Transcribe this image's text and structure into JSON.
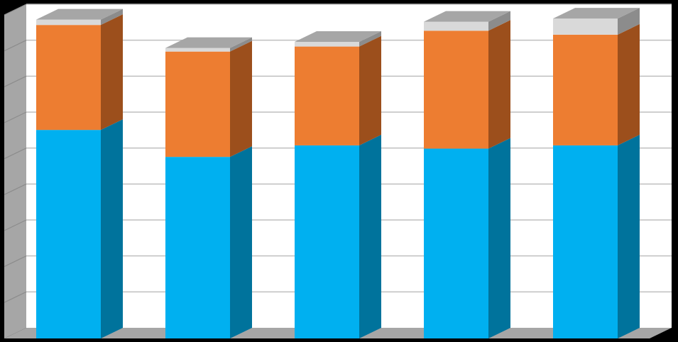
{
  "chart_data": {
    "type": "bar",
    "stacked": true,
    "three_d": true,
    "categories": [
      "",
      "",
      "",
      "",
      ""
    ],
    "series": [
      {
        "values": [
          5.8,
          5.05,
          5.37,
          5.28,
          5.37
        ]
      },
      {
        "values": [
          2.92,
          2.93,
          2.75,
          3.28,
          3.08
        ]
      },
      {
        "values": [
          0.15,
          0.1,
          0.13,
          0.25,
          0.45
        ]
      }
    ],
    "ylim": [
      0,
      9
    ],
    "grid": true,
    "legend": "none",
    "title": "",
    "xlabel": "",
    "ylabel": ""
  },
  "colors": {
    "background": "#000000",
    "plot_wall": "#ffffff",
    "gridline": "#bfbfbf",
    "side_wall": "#a6a6a6",
    "floor": "#a6a6a6",
    "series_front": [
      "#00b0f0",
      "#ed7d31",
      "#d9d9d9"
    ],
    "series_side": [
      "#00739c",
      "#9c4f1c",
      "#8c8c8c"
    ],
    "series_top": [
      "#33c2f5",
      "#f29555",
      "#a6a6a6"
    ]
  }
}
